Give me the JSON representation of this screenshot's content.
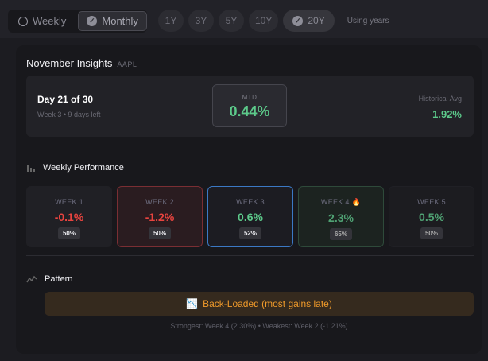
{
  "toggle": {
    "weekly": "Weekly",
    "monthly": "Monthly"
  },
  "ranges": [
    {
      "label": "1Y"
    },
    {
      "label": "3Y"
    },
    {
      "label": "5Y"
    },
    {
      "label": "10Y"
    },
    {
      "label": "20Y"
    }
  ],
  "range_hint": "Using years",
  "insights": {
    "title": "November Insights",
    "ticker": "AAPL",
    "day": "Day 21 of 30",
    "day_sub": "Week 3 • 9 days left",
    "mtd_label": "MTD",
    "mtd_value": "0.44%",
    "hist_label": "Historical Avg",
    "hist_value": "1.92%"
  },
  "weekly": {
    "title": "Weekly Performance",
    "weeks": [
      {
        "name": "WEEK 1",
        "value": "-0.1%",
        "win": "50%",
        "color": "#e8443f"
      },
      {
        "name": "WEEK 2",
        "value": "-1.2%",
        "win": "50%",
        "color": "#e8443f"
      },
      {
        "name": "WEEK 3",
        "value": "0.6%",
        "win": "52%",
        "color": "#5cc98a"
      },
      {
        "name": "WEEK 4",
        "value": "2.3%",
        "win": "65%",
        "color": "#4fa173"
      },
      {
        "name": "WEEK 5",
        "value": "0.5%",
        "win": "50%",
        "color": "#4fa173"
      }
    ]
  },
  "pattern": {
    "title": "Pattern",
    "label": "Back-Loaded (most gains late)",
    "summary": "Strongest: Week 4 (2.30%) • Weakest: Week 2 (-1.21%)"
  }
}
